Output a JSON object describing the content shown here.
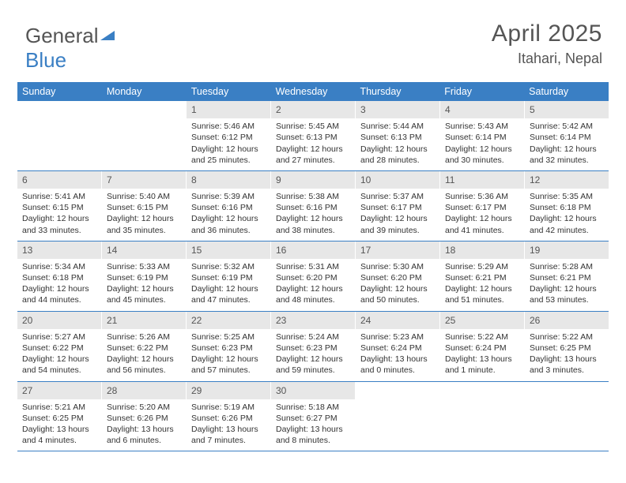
{
  "logo": {
    "part1": "General",
    "part2": "Blue"
  },
  "header": {
    "month_title": "April 2025",
    "location": "Itahari, Nepal"
  },
  "colors": {
    "header_bar": "#3a7fc4",
    "daynum_bg": "#e7e7e7",
    "text": "#333333",
    "muted": "#555555"
  },
  "day_names": [
    "Sunday",
    "Monday",
    "Tuesday",
    "Wednesday",
    "Thursday",
    "Friday",
    "Saturday"
  ],
  "weeks": [
    [
      {
        "empty": true
      },
      {
        "empty": true
      },
      {
        "n": "1",
        "sunrise": "5:46 AM",
        "sunset": "6:12 PM",
        "daylight": "12 hours and 25 minutes."
      },
      {
        "n": "2",
        "sunrise": "5:45 AM",
        "sunset": "6:13 PM",
        "daylight": "12 hours and 27 minutes."
      },
      {
        "n": "3",
        "sunrise": "5:44 AM",
        "sunset": "6:13 PM",
        "daylight": "12 hours and 28 minutes."
      },
      {
        "n": "4",
        "sunrise": "5:43 AM",
        "sunset": "6:14 PM",
        "daylight": "12 hours and 30 minutes."
      },
      {
        "n": "5",
        "sunrise": "5:42 AM",
        "sunset": "6:14 PM",
        "daylight": "12 hours and 32 minutes."
      }
    ],
    [
      {
        "n": "6",
        "sunrise": "5:41 AM",
        "sunset": "6:15 PM",
        "daylight": "12 hours and 33 minutes."
      },
      {
        "n": "7",
        "sunrise": "5:40 AM",
        "sunset": "6:15 PM",
        "daylight": "12 hours and 35 minutes."
      },
      {
        "n": "8",
        "sunrise": "5:39 AM",
        "sunset": "6:16 PM",
        "daylight": "12 hours and 36 minutes."
      },
      {
        "n": "9",
        "sunrise": "5:38 AM",
        "sunset": "6:16 PM",
        "daylight": "12 hours and 38 minutes."
      },
      {
        "n": "10",
        "sunrise": "5:37 AM",
        "sunset": "6:17 PM",
        "daylight": "12 hours and 39 minutes."
      },
      {
        "n": "11",
        "sunrise": "5:36 AM",
        "sunset": "6:17 PM",
        "daylight": "12 hours and 41 minutes."
      },
      {
        "n": "12",
        "sunrise": "5:35 AM",
        "sunset": "6:18 PM",
        "daylight": "12 hours and 42 minutes."
      }
    ],
    [
      {
        "n": "13",
        "sunrise": "5:34 AM",
        "sunset": "6:18 PM",
        "daylight": "12 hours and 44 minutes."
      },
      {
        "n": "14",
        "sunrise": "5:33 AM",
        "sunset": "6:19 PM",
        "daylight": "12 hours and 45 minutes."
      },
      {
        "n": "15",
        "sunrise": "5:32 AM",
        "sunset": "6:19 PM",
        "daylight": "12 hours and 47 minutes."
      },
      {
        "n": "16",
        "sunrise": "5:31 AM",
        "sunset": "6:20 PM",
        "daylight": "12 hours and 48 minutes."
      },
      {
        "n": "17",
        "sunrise": "5:30 AM",
        "sunset": "6:20 PM",
        "daylight": "12 hours and 50 minutes."
      },
      {
        "n": "18",
        "sunrise": "5:29 AM",
        "sunset": "6:21 PM",
        "daylight": "12 hours and 51 minutes."
      },
      {
        "n": "19",
        "sunrise": "5:28 AM",
        "sunset": "6:21 PM",
        "daylight": "12 hours and 53 minutes."
      }
    ],
    [
      {
        "n": "20",
        "sunrise": "5:27 AM",
        "sunset": "6:22 PM",
        "daylight": "12 hours and 54 minutes."
      },
      {
        "n": "21",
        "sunrise": "5:26 AM",
        "sunset": "6:22 PM",
        "daylight": "12 hours and 56 minutes."
      },
      {
        "n": "22",
        "sunrise": "5:25 AM",
        "sunset": "6:23 PM",
        "daylight": "12 hours and 57 minutes."
      },
      {
        "n": "23",
        "sunrise": "5:24 AM",
        "sunset": "6:23 PM",
        "daylight": "12 hours and 59 minutes."
      },
      {
        "n": "24",
        "sunrise": "5:23 AM",
        "sunset": "6:24 PM",
        "daylight": "13 hours and 0 minutes."
      },
      {
        "n": "25",
        "sunrise": "5:22 AM",
        "sunset": "6:24 PM",
        "daylight": "13 hours and 1 minute."
      },
      {
        "n": "26",
        "sunrise": "5:22 AM",
        "sunset": "6:25 PM",
        "daylight": "13 hours and 3 minutes."
      }
    ],
    [
      {
        "n": "27",
        "sunrise": "5:21 AM",
        "sunset": "6:25 PM",
        "daylight": "13 hours and 4 minutes."
      },
      {
        "n": "28",
        "sunrise": "5:20 AM",
        "sunset": "6:26 PM",
        "daylight": "13 hours and 6 minutes."
      },
      {
        "n": "29",
        "sunrise": "5:19 AM",
        "sunset": "6:26 PM",
        "daylight": "13 hours and 7 minutes."
      },
      {
        "n": "30",
        "sunrise": "5:18 AM",
        "sunset": "6:27 PM",
        "daylight": "13 hours and 8 minutes."
      },
      {
        "empty": true
      },
      {
        "empty": true
      },
      {
        "empty": true
      }
    ]
  ],
  "labels": {
    "sunrise": "Sunrise:",
    "sunset": "Sunset:",
    "daylight": "Daylight:"
  }
}
